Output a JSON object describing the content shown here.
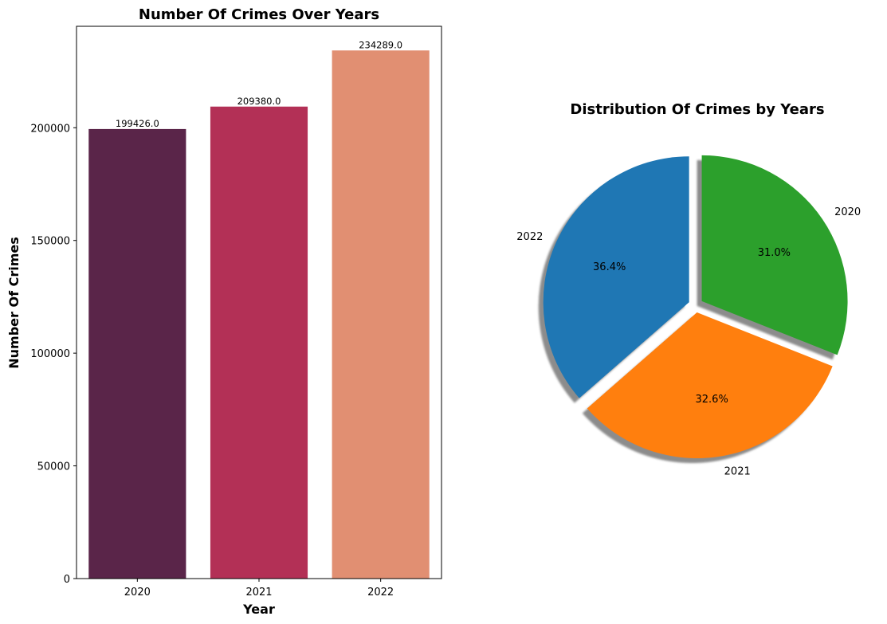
{
  "chart_data": [
    {
      "type": "bar",
      "title": "Number Of Crimes Over Years",
      "xlabel": "Year",
      "ylabel": "Number Of Crimes",
      "categories": [
        "2020",
        "2021",
        "2022"
      ],
      "values": [
        199426.0,
        209380.0,
        234289.0
      ],
      "value_labels": [
        "199426.0",
        "209380.0",
        "234289.0"
      ],
      "ylim": [
        0,
        245000
      ],
      "yticks": [
        0,
        50000,
        100000,
        150000,
        200000
      ],
      "ytick_labels": [
        "0",
        "50000",
        "100000",
        "150000",
        "200000"
      ],
      "colors": [
        "#5a2549",
        "#b33056",
        "#e18f72"
      ],
      "grid": false
    },
    {
      "type": "pie",
      "title": "Distribution Of Crimes by Years",
      "labels": [
        "2022",
        "2021",
        "2020"
      ],
      "values": [
        234289.0,
        209380.0,
        199426.0
      ],
      "percent_labels": [
        "36.4%",
        "32.6%",
        "31.0%"
      ],
      "colors": [
        "#1f77b4",
        "#ff7f0e",
        "#2ca02c"
      ],
      "explode": [
        0.05,
        0.05,
        0.05
      ],
      "shadow": true,
      "start_angle": 90
    }
  ]
}
